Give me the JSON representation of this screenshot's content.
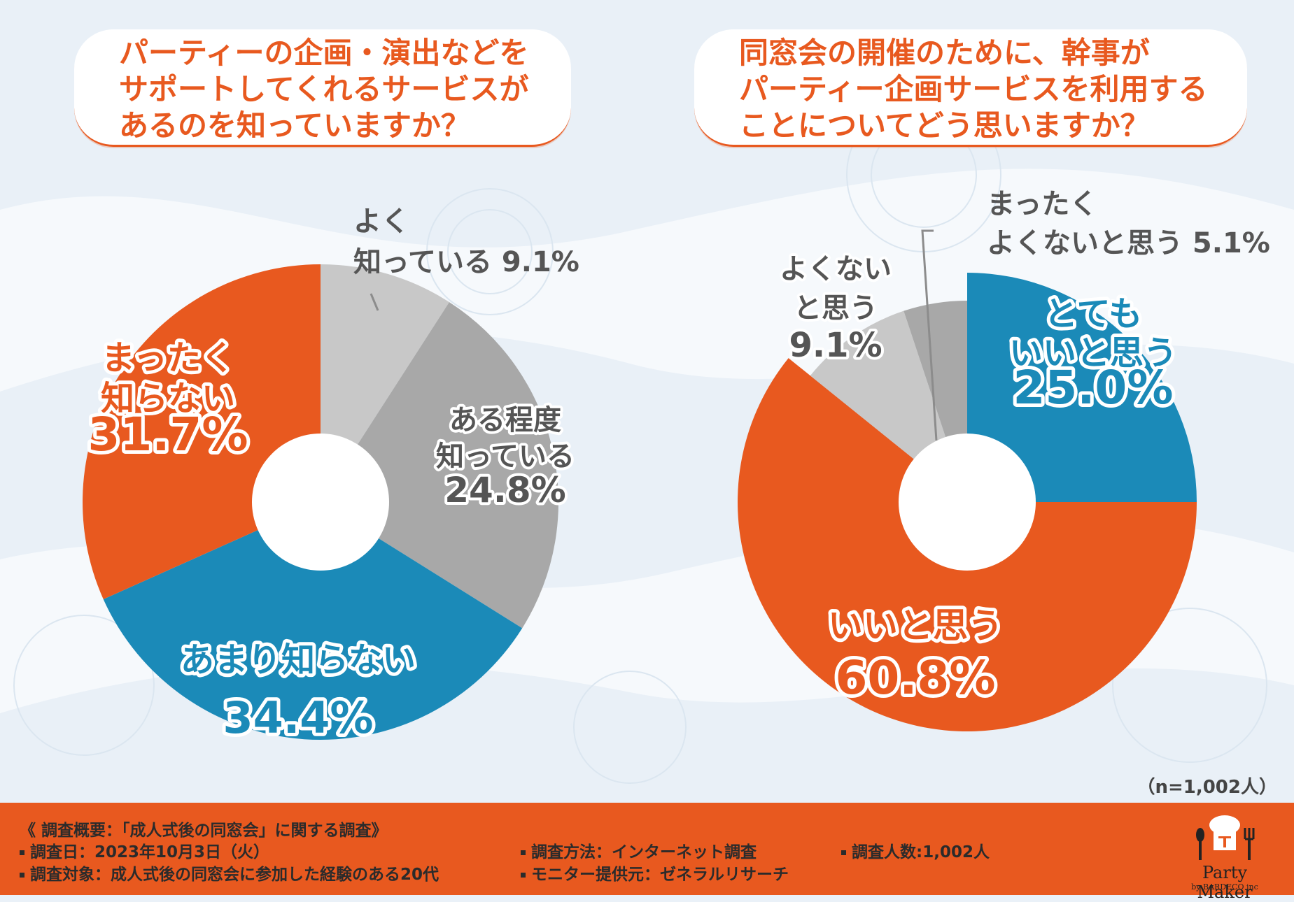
{
  "questions": {
    "left": [
      "パーティーの企画・演出などを",
      "サポートしてくれるサービスが",
      "あるのを知っていますか？"
    ],
    "right": [
      "同窓会の開催のために、幹事が",
      "パーティー企画サービスを利用する",
      "ことについてどう思いますか？"
    ]
  },
  "chart_data": [
    {
      "type": "pie",
      "title": "パーティーの企画・演出などをサポートしてくれるサービスがあるのを知っていますか？",
      "categories": [
        "よく知っている",
        "ある程度知っている",
        "あまり知らない",
        "まったく知らない"
      ],
      "values": [
        9.1,
        24.8,
        34.4,
        31.7
      ],
      "unit": "%",
      "colors": [
        "#c8c8c8",
        "#a8a8a8",
        "#1b8ab8",
        "#e8591f"
      ],
      "labels": [
        {
          "lines": [
            "よく",
            "知っている"
          ],
          "value": "9.1%"
        },
        {
          "lines": [
            "ある程度",
            "知っている"
          ],
          "value": "24.8%"
        },
        {
          "lines": [
            "あまり知らない"
          ],
          "value": "34.4%"
        },
        {
          "lines": [
            "まったく",
            "知らない"
          ],
          "value": "31.7%"
        }
      ]
    },
    {
      "type": "pie",
      "title": "同窓会の開催のために、幹事がパーティー企画サービスを利用することについてどう思いますか？",
      "categories": [
        "とてもいいと思う",
        "いいと思う",
        "よくないと思う",
        "まったくよくないと思う"
      ],
      "values": [
        25.0,
        60.8,
        9.1,
        5.1
      ],
      "unit": "%",
      "colors": [
        "#1b8ab8",
        "#e8591f",
        "#c8c8c8",
        "#a8a8a8"
      ],
      "labels": [
        {
          "lines": [
            "とても",
            "いいと思う"
          ],
          "value": "25.0%"
        },
        {
          "lines": [
            "いいと思う"
          ],
          "value": "60.8%"
        },
        {
          "lines": [
            "よくない",
            "と思う"
          ],
          "value": "9.1%"
        },
        {
          "lines": [
            "まったく",
            "よくないと思う"
          ],
          "value": "5.1%"
        }
      ]
    }
  ],
  "sample_note": "（n=1,002人）",
  "footer": {
    "title": "《 調査概要：「成人式後の同窓会」に関する調査》",
    "date": "調査日：2023年10月3日（火）",
    "target": "調査対象：成人式後の同窓会に参加した経験のある20代",
    "method": "調査方法：インターネット調査",
    "monitor": "モニター提供元：ゼネラルリサーチ",
    "count": "調査人数:1,002人"
  },
  "logo": {
    "name": "Party Maker",
    "sub": "by BARDECO inc"
  }
}
